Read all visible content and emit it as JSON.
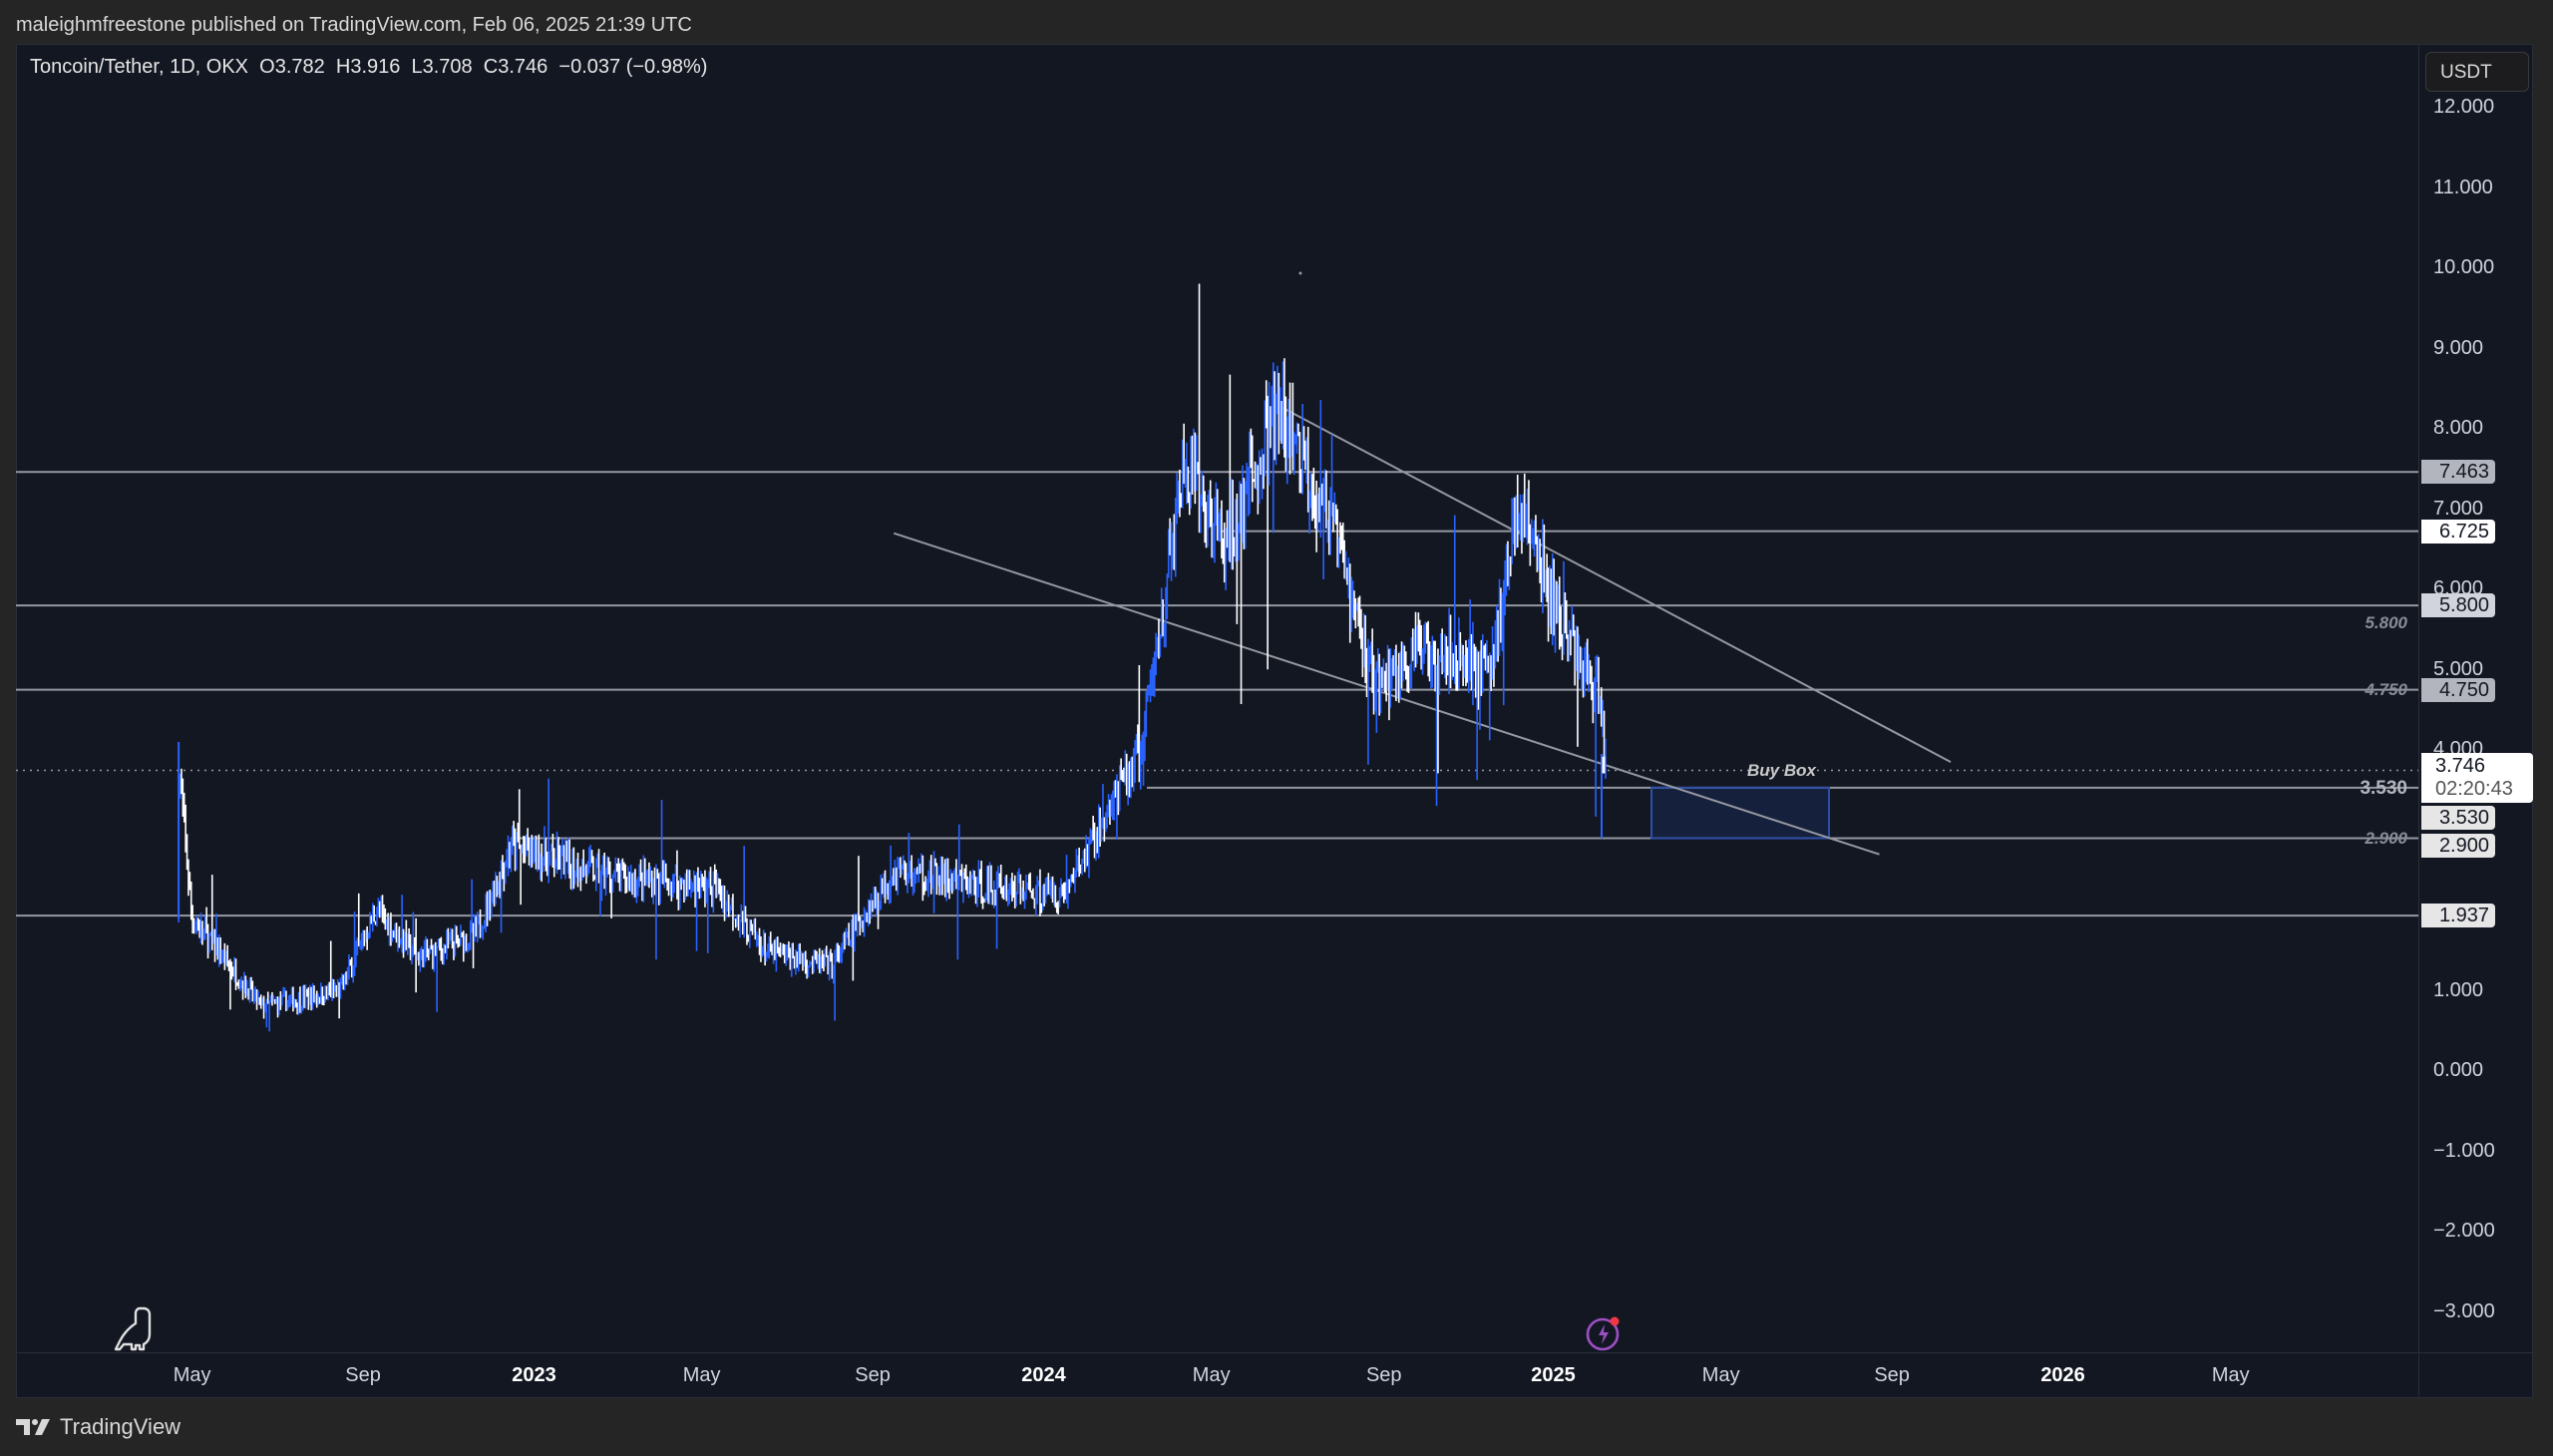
{
  "publisher": {
    "text": "maleighmfreestone published on TradingView.com, Feb 06, 2025 21:39 UTC"
  },
  "legend": {
    "symbol": "Toncoin/Tether, 1D, OKX",
    "open": "O3.782",
    "high": "H3.916",
    "low": "L3.708",
    "close": "C3.746",
    "change": "−0.037 (−0.98%)"
  },
  "price_axis": {
    "currency": "USDT",
    "ticks": [
      "12.000",
      "11.000",
      "10.000",
      "9.000",
      "8.000",
      "7.000",
      "6.000",
      "5.000",
      "4.000",
      "1.000",
      "0.000",
      "−1.000",
      "−2.000",
      "−3.000"
    ],
    "tick_values": [
      12,
      11,
      10,
      9,
      8,
      7,
      6,
      5,
      4,
      1,
      0,
      -1,
      -2,
      -3
    ],
    "level_labels": [
      {
        "text": "7.463",
        "value": 7.463,
        "bg": "#b2b5be"
      },
      {
        "text": "6.725",
        "value": 6.725,
        "bg": "#ffffff"
      },
      {
        "text": "5.800",
        "value": 5.8,
        "bg": "#d1d4dc"
      },
      {
        "text": "4.750",
        "value": 4.75,
        "bg": "#b2b5be"
      },
      {
        "text": "3.530",
        "value": 3.53,
        "bg": "#e6e6e6"
      },
      {
        "text": "2.900",
        "value": 2.9,
        "bg": "#e6e6e6"
      },
      {
        "text": "1.937",
        "value": 1.937,
        "bg": "#e6e6e6"
      }
    ],
    "last_price": "3.746",
    "countdown": "02:20:43"
  },
  "level_texts": [
    {
      "text": "5.800",
      "value": 5.8
    },
    {
      "text": "4.750",
      "value": 4.75
    },
    {
      "text": "3.530",
      "value": 3.53
    },
    {
      "text": "2.900",
      "value": 2.9
    }
  ],
  "time_axis": {
    "ticks": [
      {
        "label": "May",
        "x": 118,
        "year": false
      },
      {
        "label": "Sep",
        "x": 223,
        "year": false
      },
      {
        "label": "2023",
        "x": 328,
        "year": true
      },
      {
        "label": "May",
        "x": 431,
        "year": false
      },
      {
        "label": "Sep",
        "x": 536,
        "year": false
      },
      {
        "label": "2024",
        "x": 641,
        "year": true
      },
      {
        "label": "May",
        "x": 744,
        "year": false
      },
      {
        "label": "Sep",
        "x": 850,
        "year": false
      },
      {
        "label": "2025",
        "x": 954,
        "year": true
      },
      {
        "label": "May",
        "x": 1057,
        "year": false
      },
      {
        "label": "Sep",
        "x": 1162,
        "year": false
      },
      {
        "label": "2026",
        "x": 1267,
        "year": true
      },
      {
        "label": "May",
        "x": 1370,
        "year": false
      }
    ]
  },
  "annotations": {
    "buy_box_label": "Buy Box"
  },
  "footer": {
    "brand": "TradingView"
  },
  "colors": {
    "up": "#2962ff",
    "down": "#ffffff",
    "line": "#9598a1",
    "buy_box_fill": "rgba(41,98,255,0.12)",
    "buy_box_border": "#2f4fa8"
  },
  "chart_data": {
    "type": "candlestick",
    "title": "Toncoin/Tether, 1D, OKX",
    "xlabel": "",
    "ylabel": "USDT",
    "ylim": [
      -3.5,
      12.5
    ],
    "x_range": [
      "2022-04",
      "2026-06"
    ],
    "ohlc_last": {
      "open": 3.782,
      "high": 3.916,
      "low": 3.708,
      "close": 3.746,
      "change": -0.037,
      "change_pct": -0.98
    },
    "approx_path": [
      {
        "date": "2022-04-20",
        "price": 4.1
      },
      {
        "date": "2022-05-01",
        "price": 1.9
      },
      {
        "date": "2022-06-20",
        "price": 0.8
      },
      {
        "date": "2022-08-15",
        "price": 1.0
      },
      {
        "date": "2022-09-10",
        "price": 2.0
      },
      {
        "date": "2022-10-10",
        "price": 1.4
      },
      {
        "date": "2022-11-20",
        "price": 1.7
      },
      {
        "date": "2022-12-15",
        "price": 2.8
      },
      {
        "date": "2023-03-01",
        "price": 2.4
      },
      {
        "date": "2023-05-10",
        "price": 2.3
      },
      {
        "date": "2023-06-15",
        "price": 1.5
      },
      {
        "date": "2023-08-01",
        "price": 1.3
      },
      {
        "date": "2023-09-15",
        "price": 2.5
      },
      {
        "date": "2023-11-15",
        "price": 2.3
      },
      {
        "date": "2024-01-15",
        "price": 2.2
      },
      {
        "date": "2024-03-10",
        "price": 4.0
      },
      {
        "date": "2024-04-10",
        "price": 7.5
      },
      {
        "date": "2024-05-10",
        "price": 6.5
      },
      {
        "date": "2024-06-15",
        "price": 8.2
      },
      {
        "date": "2024-07-20",
        "price": 7.0
      },
      {
        "date": "2024-08-25",
        "price": 4.8
      },
      {
        "date": "2024-10-01",
        "price": 5.3
      },
      {
        "date": "2024-11-15",
        "price": 5.0
      },
      {
        "date": "2024-12-05",
        "price": 7.1
      },
      {
        "date": "2025-01-05",
        "price": 5.5
      },
      {
        "date": "2025-02-01",
        "price": 4.7
      },
      {
        "date": "2025-02-06",
        "price": 3.746
      }
    ],
    "horizontal_levels": [
      7.463,
      6.725,
      5.8,
      4.75,
      3.53,
      2.9,
      1.937
    ],
    "trendlines": [
      {
        "from": {
          "date": "2024-06-15",
          "price": 8.3
        },
        "to": {
          "date": "2025-10-10",
          "price": 3.85
        }
      },
      {
        "from": {
          "date": "2023-09-15",
          "price": 6.7
        },
        "to": {
          "date": "2025-08-20",
          "price": 2.7
        }
      }
    ],
    "zones": [
      {
        "label": "Buy Box",
        "from_date": "2025-03-10",
        "to_date": "2025-07-15",
        "low": 2.9,
        "high": 3.53
      }
    ],
    "legend_position": "top-left",
    "grid": false
  }
}
